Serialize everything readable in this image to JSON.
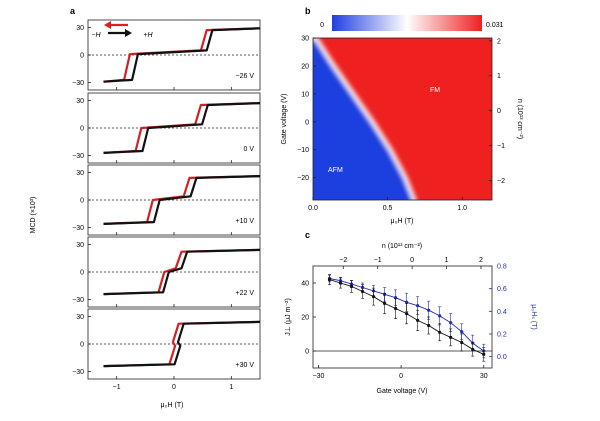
{
  "panel_labels": {
    "a": "a",
    "b": "b",
    "c": "c"
  },
  "colors": {
    "forward": "#d42020",
    "backward": "#111111",
    "blue_series": "#1f2bb0",
    "heat_low": "#1f3fe0",
    "heat_mid": "#ffffff",
    "heat_high": "#ee2020"
  },
  "chart_data": [
    {
      "panel": "a",
      "type": "line",
      "ylabel": "MCD (×10³)",
      "xlabel": "μ₀H (T)",
      "xlim": [
        -1.5,
        1.5
      ],
      "ylim": [
        -38,
        38
      ],
      "x_ticks": [
        "−1",
        "0",
        "1"
      ],
      "y_ticks": [
        "−30",
        "0",
        "30"
      ],
      "legend": {
        "minus": "−H",
        "plus": "+H"
      },
      "subpanels": [
        {
          "label": "−26 V",
          "saturation": 29,
          "plateau": 3,
          "forward_steps": [
            -0.82,
            0.52
          ],
          "backward_steps": [
            -0.68,
            0.62
          ]
        },
        {
          "label": "0 V",
          "saturation": 27,
          "plateau": 2,
          "forward_steps": [
            -0.62,
            0.42
          ],
          "backward_steps": [
            -0.5,
            0.54
          ]
        },
        {
          "label": "+10 V",
          "saturation": 26,
          "plateau": 2,
          "forward_steps": [
            -0.42,
            0.22
          ],
          "backward_steps": [
            -0.3,
            0.34
          ]
        },
        {
          "label": "+22 V",
          "saturation": 24,
          "plateau": 2,
          "forward_steps": [
            -0.22,
            0.08
          ],
          "backward_steps": [
            -0.14,
            0.18
          ]
        },
        {
          "label": "+30 V",
          "saturation": 24,
          "plateau": 0,
          "forward_steps": [
            -0.03,
            0.03
          ],
          "backward_steps": [
            0.06,
            0.12
          ]
        }
      ]
    },
    {
      "panel": "b",
      "type": "heatmap",
      "xlabel": "μ₀H (T)",
      "ylabel": "Gate voltage (V)",
      "right_label": "n (10¹³ cm⁻²)",
      "xlim": [
        0,
        1.2
      ],
      "ylim": [
        -28,
        30
      ],
      "x_ticks": [
        "0.0",
        "0.5",
        "1.0"
      ],
      "y_ticks": [
        "30",
        "20",
        "10",
        "0",
        "−10",
        "−20"
      ],
      "right_ticks": [
        "2",
        "1",
        "0",
        "−1",
        "−2"
      ],
      "colorbar": {
        "min": "0",
        "max": "0.031"
      },
      "region_labels": {
        "afm": "AFM",
        "fm": "FM"
      },
      "boundary": {
        "gate_voltage": [
          30,
          20,
          10,
          0,
          -10,
          -20,
          -28
        ],
        "field_T": [
          0.02,
          0.14,
          0.27,
          0.4,
          0.52,
          0.62,
          0.68
        ]
      }
    },
    {
      "panel": "c",
      "type": "line",
      "xlabel": "Gate voltage (V)",
      "ylabel": "J⊥ (μJ m⁻²)",
      "y2label": "μ₀Hₛ (T)",
      "top_label": "n (10¹³ cm⁻²)",
      "xlim": [
        -32,
        33
      ],
      "ylim": [
        -10,
        50
      ],
      "y2lim": [
        -0.1,
        0.8
      ],
      "x_ticks": [
        "−30",
        "0",
        "30"
      ],
      "y_ticks": [
        "0",
        "20",
        "40"
      ],
      "y2_ticks": [
        "0.0",
        "0.2",
        "0.4",
        "0.6",
        "0.8"
      ],
      "top_ticks": [
        "−2",
        "−1",
        "0",
        "1",
        "2"
      ],
      "series": [
        {
          "name": "J⊥",
          "x": [
            -26,
            -22,
            -18,
            -14,
            -10,
            -6,
            -2,
            2,
            6,
            10,
            14,
            18,
            22,
            26,
            30
          ],
          "values": [
            42,
            40,
            38,
            35,
            32,
            28,
            25,
            22,
            18,
            15,
            11,
            8,
            5,
            1,
            -2
          ],
          "err": [
            3,
            3,
            3.5,
            4,
            5,
            6,
            6,
            6,
            6,
            5,
            5,
            5,
            5,
            4,
            4
          ]
        },
        {
          "name": "μ₀Hₛ",
          "x": [
            -26,
            -22,
            -18,
            -14,
            -10,
            -6,
            -2,
            2,
            6,
            10,
            14,
            18,
            22,
            26,
            30
          ],
          "values": [
            0.69,
            0.67,
            0.64,
            0.61,
            0.58,
            0.55,
            0.52,
            0.48,
            0.45,
            0.41,
            0.36,
            0.3,
            0.22,
            0.12,
            0.05
          ],
          "err": [
            0.03,
            0.03,
            0.03,
            0.04,
            0.05,
            0.06,
            0.07,
            0.08,
            0.08,
            0.08,
            0.08,
            0.08,
            0.07,
            0.07,
            0.06
          ]
        }
      ]
    }
  ]
}
